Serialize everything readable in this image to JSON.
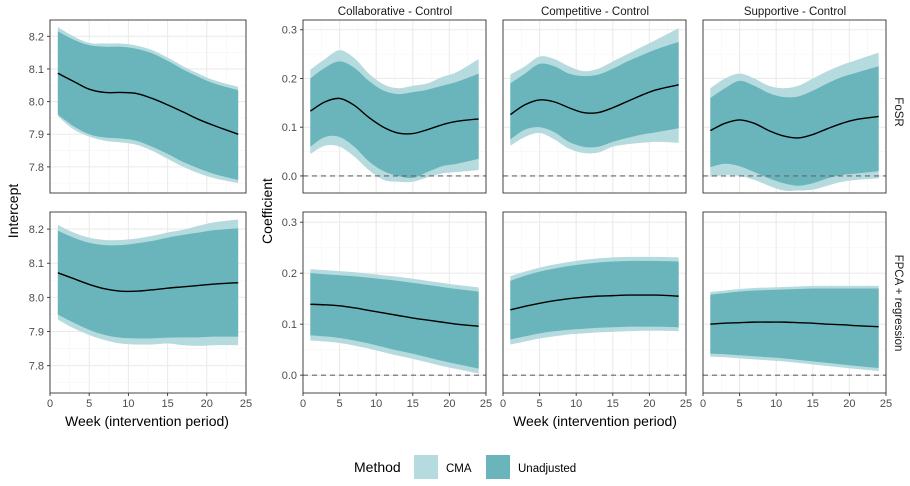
{
  "colors": {
    "cma": "#b6dbde",
    "unadjusted": "#69b5bb",
    "line": "#000000",
    "zero": "#666666",
    "grid_major": "#ebebeb",
    "grid_minor": "#f5f5f5",
    "panel_border": "#333333"
  },
  "labels": {
    "left_ylabel": "Intercept",
    "right_ylabel": "Coefficient",
    "xlabel_left": "Week (intervention period)",
    "xlabel_right": "Week (intervention period)",
    "col_strips": [
      "Collaborative - Control",
      "Competitive - Control",
      "Supportive - Control"
    ],
    "row_strips": [
      "FoSR",
      "FPCA + regression"
    ]
  },
  "legend": {
    "title": "Method",
    "items": [
      {
        "label": "CMA",
        "color_key": "cma"
      },
      {
        "label": "Unadjusted",
        "color_key": "unadjusted"
      }
    ]
  },
  "chart_data": {
    "type": "area",
    "x": [
      1,
      3,
      5,
      7,
      9,
      11,
      13,
      15,
      17,
      19,
      21,
      24
    ],
    "xlim": [
      0,
      25
    ],
    "xticks": [
      0,
      5,
      10,
      15,
      20,
      25
    ],
    "intercept_axis": {
      "ylim": [
        7.72,
        8.25
      ],
      "yticks": [
        7.8,
        7.9,
        8.0,
        8.1,
        8.2
      ]
    },
    "coefficient_axis": {
      "ylim": [
        -0.035,
        0.32
      ],
      "yticks": [
        0.0,
        0.1,
        0.2,
        0.3
      ]
    },
    "panels": [
      {
        "row": "FoSR",
        "col": "Intercept",
        "zero_line": false,
        "estimate": [
          8.087,
          8.062,
          8.038,
          8.028,
          8.028,
          8.025,
          8.01,
          7.99,
          7.968,
          7.945,
          7.926,
          7.9
        ],
        "cma_lo": [
          7.955,
          7.915,
          7.893,
          7.88,
          7.875,
          7.868,
          7.85,
          7.825,
          7.8,
          7.78,
          7.765,
          7.75
        ],
        "cma_hi": [
          8.228,
          8.2,
          8.18,
          8.178,
          8.178,
          8.172,
          8.158,
          8.135,
          8.108,
          8.085,
          8.065,
          8.045
        ],
        "unadj_lo": [
          7.96,
          7.925,
          7.9,
          7.89,
          7.887,
          7.88,
          7.862,
          7.84,
          7.815,
          7.795,
          7.778,
          7.76
        ],
        "unadj_hi": [
          8.215,
          8.19,
          8.173,
          8.168,
          8.168,
          8.162,
          8.148,
          8.125,
          8.098,
          8.075,
          8.055,
          8.035
        ]
      },
      {
        "row": "FoSR",
        "col": "Collaborative - Control",
        "zero_line": true,
        "estimate": [
          0.133,
          0.152,
          0.159,
          0.145,
          0.12,
          0.1,
          0.088,
          0.087,
          0.095,
          0.105,
          0.112,
          0.117
        ],
        "cma_lo": [
          0.045,
          0.062,
          0.06,
          0.04,
          0.012,
          -0.008,
          -0.012,
          -0.012,
          -0.003,
          0.005,
          0.008,
          0.012
        ],
        "cma_hi": [
          0.218,
          0.24,
          0.258,
          0.242,
          0.21,
          0.188,
          0.18,
          0.185,
          0.19,
          0.203,
          0.213,
          0.24
        ],
        "unadj_lo": [
          0.06,
          0.08,
          0.08,
          0.06,
          0.03,
          0.01,
          0.0,
          -0.004,
          0.008,
          0.02,
          0.025,
          0.035
        ],
        "unadj_hi": [
          0.2,
          0.222,
          0.235,
          0.222,
          0.195,
          0.175,
          0.168,
          0.172,
          0.177,
          0.185,
          0.193,
          0.21
        ]
      },
      {
        "row": "FoSR",
        "col": "Competitive - Control",
        "zero_line": true,
        "estimate": [
          0.126,
          0.146,
          0.156,
          0.152,
          0.14,
          0.13,
          0.13,
          0.14,
          0.153,
          0.166,
          0.177,
          0.187
        ],
        "cma_lo": [
          0.062,
          0.08,
          0.088,
          0.075,
          0.056,
          0.047,
          0.048,
          0.06,
          0.065,
          0.068,
          0.07,
          0.068
        ],
        "cma_hi": [
          0.208,
          0.225,
          0.245,
          0.24,
          0.225,
          0.215,
          0.22,
          0.235,
          0.25,
          0.265,
          0.28,
          0.303
        ],
        "unadj_lo": [
          0.075,
          0.095,
          0.1,
          0.09,
          0.07,
          0.06,
          0.06,
          0.07,
          0.078,
          0.085,
          0.09,
          0.098
        ],
        "unadj_hi": [
          0.19,
          0.21,
          0.23,
          0.225,
          0.21,
          0.205,
          0.208,
          0.22,
          0.235,
          0.248,
          0.26,
          0.275
        ]
      },
      {
        "row": "FoSR",
        "col": "Supportive - Control",
        "zero_line": true,
        "estimate": [
          0.093,
          0.108,
          0.115,
          0.108,
          0.093,
          0.082,
          0.078,
          0.085,
          0.097,
          0.108,
          0.116,
          0.122
        ],
        "cma_lo": [
          -0.002,
          0.002,
          0.0,
          -0.008,
          -0.02,
          -0.03,
          -0.03,
          -0.028,
          -0.02,
          -0.012,
          -0.008,
          -0.005
        ],
        "cma_hi": [
          0.18,
          0.2,
          0.21,
          0.2,
          0.185,
          0.18,
          0.185,
          0.2,
          0.215,
          0.228,
          0.238,
          0.253
        ],
        "unadj_lo": [
          0.018,
          0.025,
          0.02,
          0.008,
          -0.005,
          -0.015,
          -0.02,
          -0.015,
          -0.005,
          0.002,
          0.005,
          0.01
        ],
        "unadj_hi": [
          0.16,
          0.18,
          0.195,
          0.185,
          0.17,
          0.162,
          0.163,
          0.175,
          0.19,
          0.203,
          0.212,
          0.225
        ]
      },
      {
        "row": "FPCA + regression",
        "col": "Intercept",
        "zero_line": false,
        "estimate": [
          8.072,
          8.055,
          8.038,
          8.025,
          8.018,
          8.018,
          8.022,
          8.027,
          8.031,
          8.035,
          8.039,
          8.043
        ],
        "cma_lo": [
          7.935,
          7.91,
          7.89,
          7.875,
          7.865,
          7.862,
          7.862,
          7.865,
          7.86,
          7.858,
          7.86,
          7.86
        ],
        "cma_hi": [
          8.212,
          8.19,
          8.175,
          8.168,
          8.168,
          8.172,
          8.18,
          8.19,
          8.198,
          8.21,
          8.22,
          8.228
        ],
        "unadj_lo": [
          7.95,
          7.926,
          7.905,
          7.89,
          7.882,
          7.88,
          7.88,
          7.882,
          7.883,
          7.883,
          7.885,
          7.885
        ],
        "unadj_hi": [
          8.195,
          8.175,
          8.16,
          8.153,
          8.153,
          8.158,
          8.165,
          8.175,
          8.183,
          8.19,
          8.197,
          8.202
        ]
      },
      {
        "row": "FPCA + regression",
        "col": "Collaborative - Control",
        "zero_line": true,
        "estimate": [
          0.139,
          0.138,
          0.136,
          0.132,
          0.127,
          0.122,
          0.117,
          0.112,
          0.108,
          0.104,
          0.1,
          0.096
        ],
        "cma_lo": [
          0.068,
          0.066,
          0.063,
          0.058,
          0.052,
          0.045,
          0.038,
          0.032,
          0.025,
          0.018,
          0.012,
          0.003
        ],
        "cma_hi": [
          0.208,
          0.206,
          0.204,
          0.202,
          0.199,
          0.196,
          0.193,
          0.189,
          0.185,
          0.181,
          0.177,
          0.172
        ],
        "unadj_lo": [
          0.078,
          0.076,
          0.073,
          0.068,
          0.062,
          0.055,
          0.048,
          0.042,
          0.035,
          0.028,
          0.022,
          0.013
        ],
        "unadj_hi": [
          0.2,
          0.198,
          0.196,
          0.194,
          0.191,
          0.188,
          0.185,
          0.181,
          0.177,
          0.173,
          0.169,
          0.164
        ]
      },
      {
        "row": "FPCA + regression",
        "col": "Competitive - Control",
        "zero_line": true,
        "estimate": [
          0.128,
          0.135,
          0.141,
          0.146,
          0.15,
          0.153,
          0.155,
          0.156,
          0.157,
          0.157,
          0.157,
          0.155
        ],
        "cma_lo": [
          0.06,
          0.066,
          0.072,
          0.076,
          0.08,
          0.082,
          0.084,
          0.085,
          0.086,
          0.087,
          0.087,
          0.086
        ],
        "cma_hi": [
          0.194,
          0.203,
          0.211,
          0.217,
          0.222,
          0.226,
          0.229,
          0.231,
          0.232,
          0.232,
          0.232,
          0.231
        ],
        "unadj_lo": [
          0.07,
          0.076,
          0.082,
          0.086,
          0.089,
          0.091,
          0.093,
          0.094,
          0.095,
          0.095,
          0.095,
          0.094
        ],
        "unadj_hi": [
          0.185,
          0.195,
          0.203,
          0.209,
          0.214,
          0.218,
          0.221,
          0.223,
          0.224,
          0.224,
          0.224,
          0.223
        ]
      },
      {
        "row": "FPCA + regression",
        "col": "Supportive - Control",
        "zero_line": true,
        "estimate": [
          0.1,
          0.102,
          0.103,
          0.104,
          0.104,
          0.104,
          0.103,
          0.102,
          0.1,
          0.099,
          0.097,
          0.095
        ],
        "cma_lo": [
          0.036,
          0.035,
          0.033,
          0.031,
          0.029,
          0.027,
          0.024,
          0.021,
          0.018,
          0.015,
          0.012,
          0.008
        ],
        "cma_hi": [
          0.163,
          0.166,
          0.169,
          0.171,
          0.172,
          0.173,
          0.174,
          0.175,
          0.175,
          0.175,
          0.175,
          0.175
        ],
        "unadj_lo": [
          0.042,
          0.041,
          0.039,
          0.037,
          0.035,
          0.033,
          0.03,
          0.027,
          0.024,
          0.021,
          0.018,
          0.014
        ],
        "unadj_hi": [
          0.158,
          0.161,
          0.164,
          0.166,
          0.167,
          0.168,
          0.169,
          0.17,
          0.17,
          0.17,
          0.17,
          0.17
        ]
      }
    ]
  }
}
